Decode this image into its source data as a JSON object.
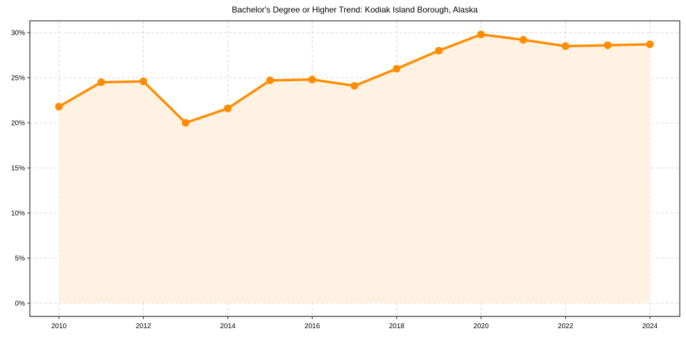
{
  "chart_data": {
    "type": "line",
    "title": "Bachelor's Degree or Higher Trend: Kodiak Island Borough, Alaska",
    "xlabel": "",
    "ylabel": "",
    "x": [
      2010,
      2011,
      2012,
      2013,
      2014,
      2015,
      2016,
      2017,
      2018,
      2019,
      2020,
      2021,
      2022,
      2023,
      2024
    ],
    "series": [
      {
        "name": "Bachelor's Degree or Higher",
        "values": [
          21.8,
          24.5,
          24.6,
          20.0,
          21.6,
          24.7,
          24.8,
          24.1,
          26.0,
          28.0,
          29.8,
          29.2,
          28.5,
          28.6,
          28.7
        ],
        "color": "#ff8c00",
        "fill": "#fff2e3",
        "marker": "circle"
      }
    ],
    "xticks": [
      "2010",
      "2012",
      "2014",
      "2016",
      "2018",
      "2020",
      "2022",
      "2024"
    ],
    "yticks": [
      "0%",
      "5%",
      "10%",
      "15%",
      "20%",
      "25%",
      "30%"
    ],
    "ylim": [
      -1.4,
      31.4
    ],
    "xlim": [
      2009.3,
      2024.7
    ],
    "grid": true,
    "legend": null
  }
}
